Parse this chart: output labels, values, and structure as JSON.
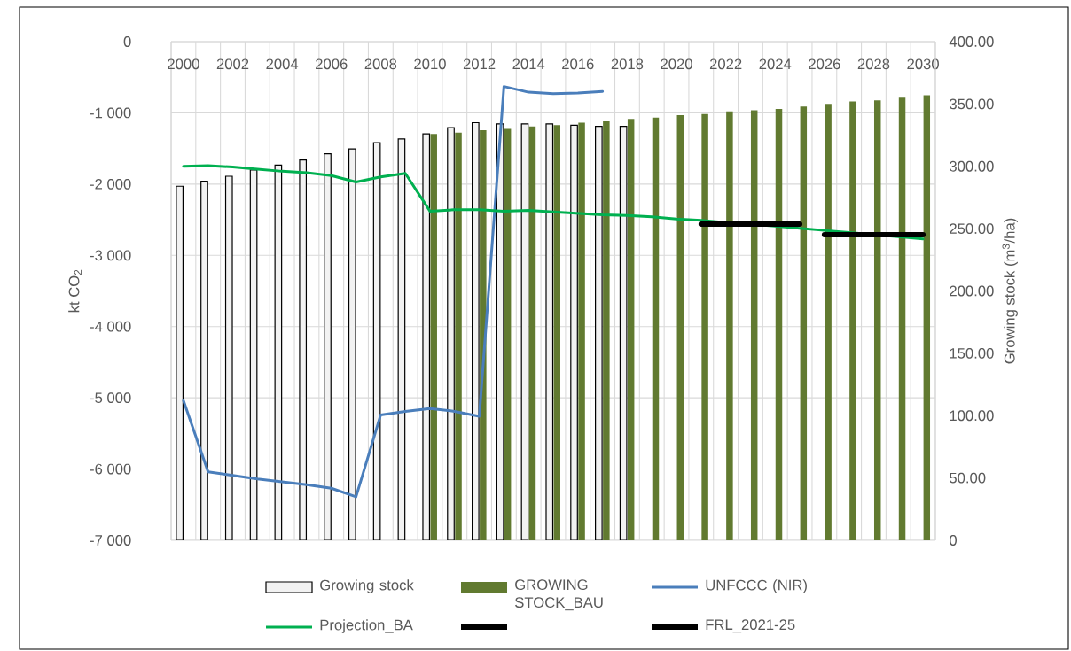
{
  "chart_data": {
    "type": "bar",
    "categories": [
      "2000",
      null,
      "2002",
      null,
      "2004",
      null,
      "2006",
      null,
      "2008",
      null,
      "2010",
      null,
      "2012",
      null,
      "2014",
      null,
      "2016",
      null,
      "2018",
      null,
      "2020",
      null,
      "2022",
      null,
      "2024",
      null,
      "2026",
      null,
      "2028",
      null,
      "2030"
    ],
    "ylabel": "kt CO$_{2}$",
    "y2label": "Growing stock (m$^{3}$/ha)",
    "ylim": [
      -7000,
      0
    ],
    "yticks": [
      0,
      {
        "value": -1000,
        "label": "-1 000"
      },
      {
        "value": -2000,
        "label": "-2 000"
      },
      {
        "value": -3000,
        "label": "-3 000"
      },
      {
        "value": -4000,
        "label": "-4 000"
      },
      {
        "value": -5000,
        "label": "-5 000"
      },
      {
        "value": -6000,
        "label": "-6 000"
      },
      {
        "value": -7000,
        "label": "-7 000"
      }
    ],
    "y2lim": [
      0,
      400
    ],
    "y2ticks": [
      0,
      {
        "value": 50,
        "label": "50.00"
      },
      {
        "value": 100,
        "label": "100.00"
      },
      {
        "value": 150,
        "label": "150.00"
      },
      {
        "value": 200,
        "label": "200.00"
      },
      {
        "value": 250,
        "label": "250.00"
      },
      {
        "value": 300,
        "label": "300.00"
      },
      {
        "value": 350,
        "label": "350.00"
      },
      {
        "value": 400,
        "label": "400.00"
      }
    ],
    "grid": true,
    "legend": "bottom",
    "series": [
      {
        "name": "Growing stock",
        "axis": "y2",
        "color": "#f2f2f2",
        "values": [
          284,
          288,
          292,
          297,
          301,
          305,
          310,
          314,
          319,
          322,
          326,
          331,
          335,
          334,
          334,
          334,
          333,
          332,
          332,
          null,
          null,
          null,
          null,
          null,
          null,
          null,
          null,
          null,
          null,
          null,
          null
        ]
      },
      {
        "name": "GROWING STOCK_BAU",
        "axis": "y2",
        "color": "#617a30",
        "values": [
          null,
          null,
          null,
          null,
          null,
          null,
          null,
          null,
          null,
          null,
          326,
          327,
          329,
          330,
          332,
          333,
          335,
          336,
          338,
          339,
          341,
          342,
          344,
          345,
          346,
          348,
          350,
          352,
          353,
          355,
          357
        ]
      },
      {
        "name": "UNFCCC (NIR)",
        "type": "line",
        "color": "#4a7ebb",
        "values": [
          -5040,
          -6040,
          -6090,
          -6140,
          -6180,
          -6220,
          -6270,
          -6390,
          -5240,
          -5190,
          -5150,
          -5190,
          -5260,
          -630,
          -710,
          -730,
          -720,
          -700,
          null,
          null,
          null,
          null,
          null,
          null,
          null,
          null,
          null,
          null,
          null,
          null,
          null
        ]
      },
      {
        "name": "Projection_BA",
        "type": "line",
        "color": "#00b050",
        "values": [
          -1750,
          -1740,
          -1760,
          -1790,
          -1820,
          -1840,
          -1880,
          -1970,
          -1900,
          -1850,
          -2380,
          -2360,
          -2360,
          -2380,
          -2370,
          -2390,
          -2410,
          -2430,
          -2440,
          -2460,
          -2490,
          -2510,
          -2540,
          -2560,
          -2590,
          -2620,
          -2650,
          -2680,
          -2710,
          -2740,
          -2770
        ]
      },
      {
        "type": "line",
        "color": "#000000",
        "values": [
          null,
          null,
          null,
          null,
          null,
          null,
          null,
          null,
          null,
          null,
          null,
          null,
          null,
          null,
          null,
          null,
          null,
          null,
          null,
          null,
          null,
          null,
          null,
          null,
          null,
          null,
          -2710,
          -2710,
          -2710,
          -2710,
          -2710
        ]
      },
      {
        "name": "FRL_2021-25",
        "type": "line",
        "color": "#000000",
        "values": [
          null,
          null,
          null,
          null,
          null,
          null,
          null,
          null,
          null,
          null,
          null,
          null,
          null,
          null,
          null,
          null,
          null,
          null,
          null,
          null,
          null,
          -2560,
          -2560,
          -2560,
          -2560,
          -2560,
          null,
          null,
          null,
          null,
          null
        ]
      }
    ]
  }
}
